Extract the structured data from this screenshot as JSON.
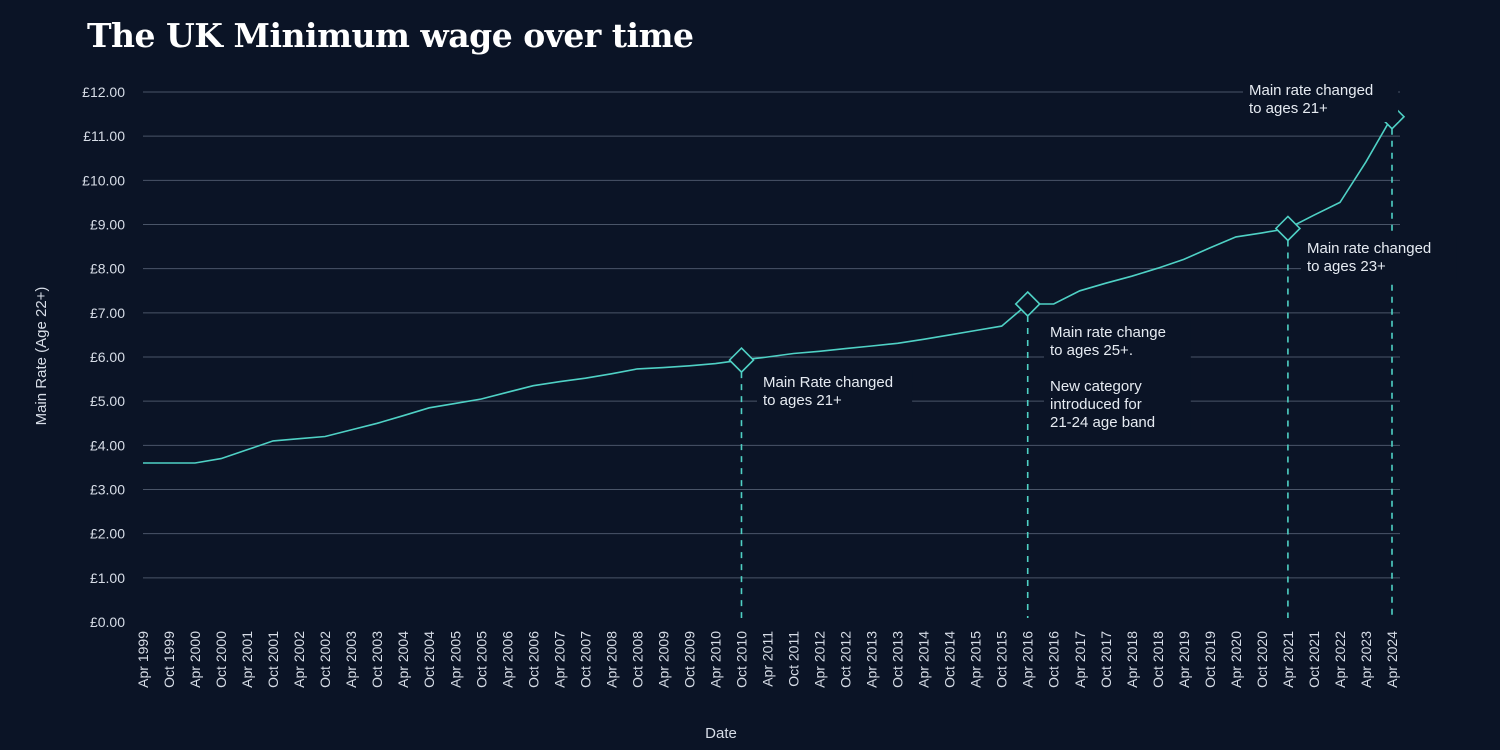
{
  "chart_data": {
    "type": "line",
    "title": "The UK Minimum wage over time",
    "xlabel": "Date",
    "ylabel": "Main Rate (Age 22+)",
    "ylim": [
      0,
      12
    ],
    "y_ticks": [
      "£0.00",
      "£1.00",
      "£2.00",
      "£3.00",
      "£4.00",
      "£5.00",
      "£6.00",
      "£7.00",
      "£8.00",
      "£9.00",
      "£10.00",
      "£11.00",
      "£12.00"
    ],
    "grid": true,
    "categories": [
      "Apr 1999",
      "Oct 1999",
      "Apr 2000",
      "Oct 2000",
      "Apr 2001",
      "Oct 2001",
      "Apr 2002",
      "Oct 2002",
      "Apr 2003",
      "Oct 2003",
      "Apr 2004",
      "Oct 2004",
      "Apr 2005",
      "Oct 2005",
      "Apr 2006",
      "Oct 2006",
      "Apr 2007",
      "Oct 2007",
      "Apr 2008",
      "Oct 2008",
      "Apr 2009",
      "Oct 2009",
      "Apr 2010",
      "Oct 2010",
      "Apr 2011",
      "Oct 2011",
      "Apr 2012",
      "Oct 2012",
      "Apr 2013",
      "Oct 2013",
      "Apr 2014",
      "Oct 2014",
      "Apr 2015",
      "Oct 2015",
      "Apr 2016",
      "Oct 2016",
      "Apr 2017",
      "Oct 2017",
      "Apr 2018",
      "Oct 2018",
      "Apr 2019",
      "Oct 2019",
      "Apr 2020",
      "Oct 2020",
      "Apr 2021",
      "Oct 2021",
      "Apr 2022",
      "Apr 2023",
      "Apr 2024"
    ],
    "series": [
      {
        "name": "Main Rate",
        "color": "#4fd1c5",
        "values": [
          3.6,
          3.6,
          3.6,
          3.7,
          3.9,
          4.1,
          4.15,
          4.2,
          4.35,
          4.5,
          4.67,
          4.85,
          4.95,
          5.05,
          5.2,
          5.35,
          5.44,
          5.52,
          5.62,
          5.73,
          5.76,
          5.8,
          5.85,
          5.93,
          6.0,
          6.08,
          6.13,
          6.19,
          6.25,
          6.31,
          6.4,
          6.5,
          6.6,
          6.7,
          7.2,
          7.2,
          7.5,
          7.67,
          7.83,
          8.01,
          8.21,
          8.47,
          8.72,
          8.81,
          8.91,
          9.21,
          9.5,
          10.42,
          11.44
        ]
      }
    ],
    "annotations": [
      {
        "category": "Oct 2010",
        "value": 5.93,
        "lines": [
          "Main Rate changed",
          "to ages 21+"
        ]
      },
      {
        "category": "Apr 2016",
        "value": 7.2,
        "lines": [
          "Main rate change",
          "to ages 25+.",
          "",
          "New category",
          "introduced for",
          "21-24 age band"
        ]
      },
      {
        "category": "Apr 2021",
        "value": 8.91,
        "lines": [
          "Main rate changed",
          "to ages 23+"
        ]
      },
      {
        "category": "Apr 2024",
        "value": 11.44,
        "lines": [
          "Main rate changed",
          "to ages 21+"
        ]
      }
    ]
  }
}
